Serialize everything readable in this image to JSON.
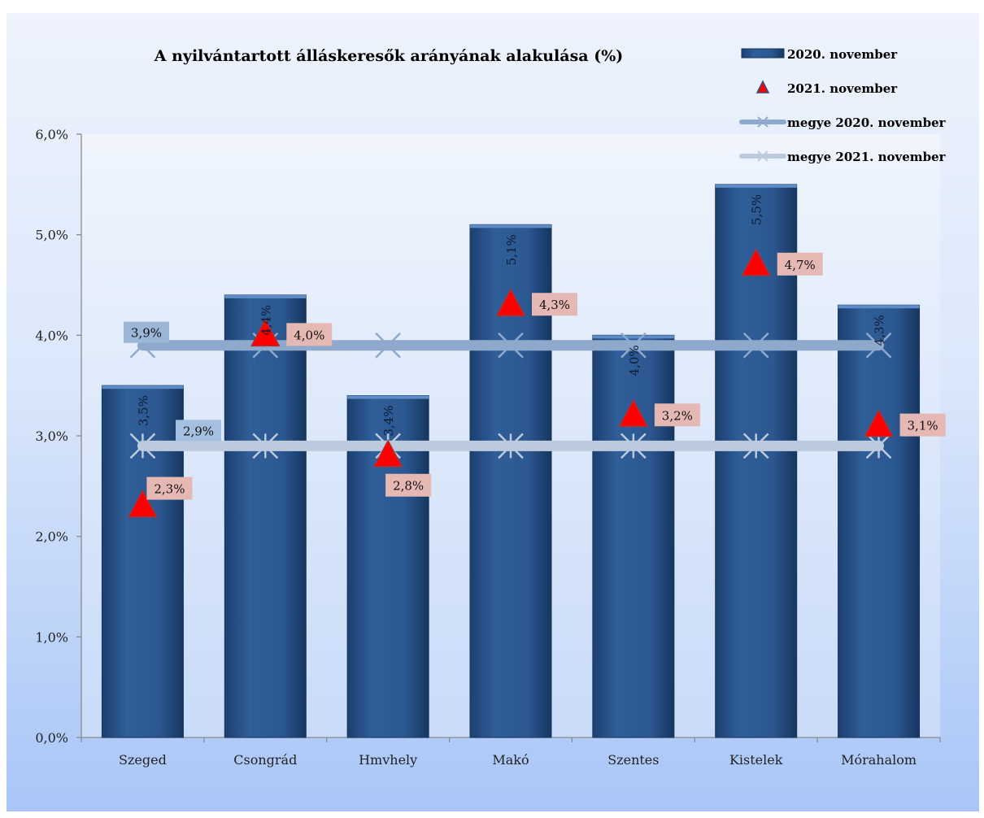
{
  "chart_data": {
    "type": "bar",
    "title": "A nyilvántartott álláskeresők arányának alakulása (%)",
    "categories": [
      "Szeged",
      "Csongrád",
      "Hmvhely",
      "Makó",
      "Szentes",
      "Kistelek",
      "Mórahalom"
    ],
    "ylim": [
      0,
      6
    ],
    "yticks": [
      "0,0%",
      "1,0%",
      "2,0%",
      "3,0%",
      "4,0%",
      "5,0%",
      "6,0%"
    ],
    "grid": false,
    "legend_position": "top-right",
    "series": [
      {
        "name": "2020. november",
        "kind": "bar",
        "color": "#2a5590",
        "values": [
          3.5,
          4.4,
          3.4,
          5.1,
          4.0,
          5.5,
          4.3
        ],
        "labels": [
          "3,5%",
          "4,4%",
          "3,4%",
          "5,1%",
          "4,0%",
          "5,5%",
          "4,3%"
        ]
      },
      {
        "name": "2021. november",
        "kind": "marker-triangle",
        "color": "#ff0000",
        "values": [
          2.3,
          4.0,
          2.8,
          4.3,
          3.2,
          4.7,
          3.1
        ],
        "labels": [
          "2,3%",
          "4,0%",
          "2,8%",
          "4,3%",
          "3,2%",
          "4,7%",
          "3,1%"
        ]
      },
      {
        "name": "megye 2020. november",
        "kind": "line",
        "color": "#8fa9cc",
        "values": [
          3.9,
          3.9,
          3.9,
          3.9,
          3.9,
          3.9,
          3.9
        ],
        "label": "3,9%"
      },
      {
        "name": "megye 2021. november",
        "kind": "line",
        "color": "#bccadd",
        "values": [
          2.9,
          2.9,
          2.9,
          2.9,
          2.9,
          2.9,
          2.9
        ],
        "label": "2,9%"
      }
    ]
  }
}
